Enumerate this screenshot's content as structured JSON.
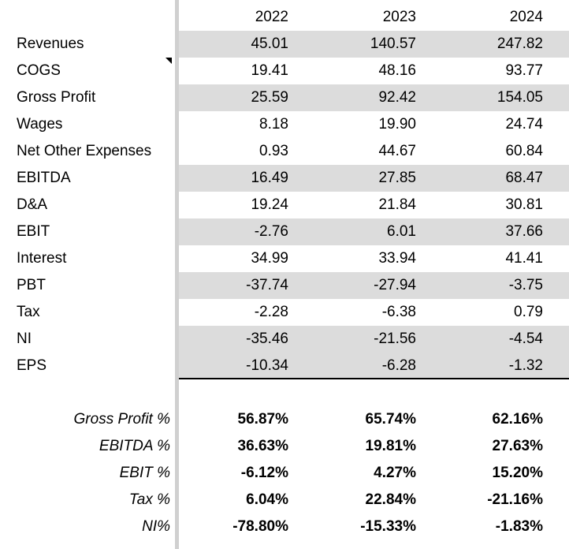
{
  "years": [
    "2022",
    "2023",
    "2024"
  ],
  "rows": [
    {
      "label": "Revenues",
      "values": [
        "45.01",
        "140.57",
        "247.82"
      ]
    },
    {
      "label": "COGS",
      "values": [
        "19.41",
        "48.16",
        "93.77"
      ]
    },
    {
      "label": "Gross Profit",
      "values": [
        "25.59",
        "92.42",
        "154.05"
      ]
    },
    {
      "label": "Wages",
      "values": [
        "8.18",
        "19.90",
        "24.74"
      ]
    },
    {
      "label": "Net Other Expenses",
      "values": [
        "0.93",
        "44.67",
        "60.84"
      ]
    },
    {
      "label": "EBITDA",
      "values": [
        "16.49",
        "27.85",
        "68.47"
      ]
    },
    {
      "label": "D&A",
      "values": [
        "19.24",
        "21.84",
        "30.81"
      ]
    },
    {
      "label": "EBIT",
      "values": [
        "-2.76",
        "6.01",
        "37.66"
      ]
    },
    {
      "label": "Interest",
      "values": [
        "34.99",
        "33.94",
        "41.41"
      ]
    },
    {
      "label": "PBT",
      "values": [
        "-37.74",
        "-27.94",
        "-3.75"
      ]
    },
    {
      "label": "Tax",
      "values": [
        "-2.28",
        "-6.38",
        "0.79"
      ]
    },
    {
      "label": "NI",
      "values": [
        "-35.46",
        "-21.56",
        "-4.54"
      ]
    },
    {
      "label": "EPS",
      "values": [
        "-10.34",
        "-6.28",
        "-1.32"
      ]
    }
  ],
  "ratios": [
    {
      "label": "Gross Profit %",
      "values": [
        "56.87%",
        "65.74%",
        "62.16%"
      ]
    },
    {
      "label": "EBITDA %",
      "values": [
        "36.63%",
        "19.81%",
        "27.63%"
      ]
    },
    {
      "label": "EBIT %",
      "values": [
        "-6.12%",
        "4.27%",
        "15.20%"
      ]
    },
    {
      "label": "Tax %",
      "values": [
        "6.04%",
        "22.84%",
        "-21.16%"
      ]
    },
    {
      "label": "NI%",
      "values": [
        "-78.80%",
        "-15.33%",
        "-1.83%"
      ]
    }
  ],
  "colors": {
    "band": "#dcdcdc",
    "divider": "#d0d0d0"
  }
}
